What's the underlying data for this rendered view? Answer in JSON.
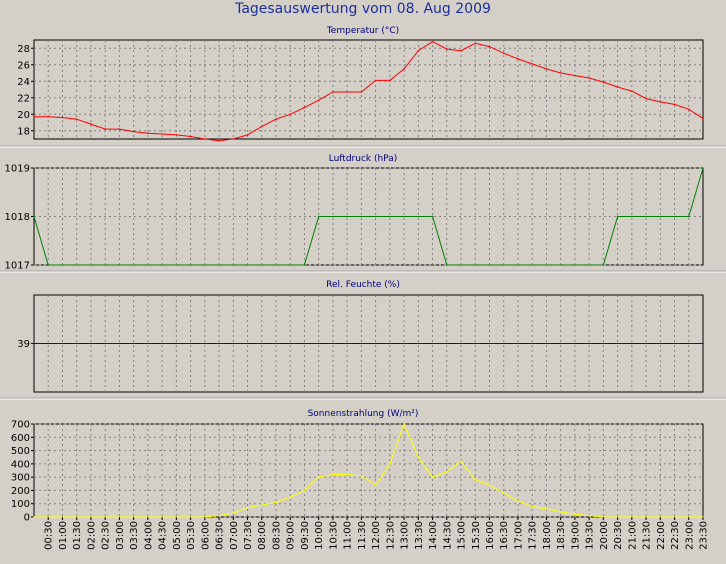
{
  "title": "Tagesauswertung vom 08. Aug 2009",
  "colors": {
    "background": "#d4d0c8",
    "plot_background": "#d4d0c8",
    "title": "#1a2fa0",
    "panel_title": "#000080",
    "grid": "#808080"
  },
  "x_axis_labels": [
    "00:30",
    "01:00",
    "01:30",
    "02:00",
    "02:30",
    "03:00",
    "03:30",
    "04:00",
    "04:30",
    "05:00",
    "05:30",
    "06:00",
    "06:30",
    "07:00",
    "07:30",
    "08:00",
    "08:30",
    "09:00",
    "09:30",
    "10:00",
    "10:30",
    "11:00",
    "11:30",
    "12:00",
    "12:30",
    "13:00",
    "13:30",
    "14:00",
    "14:30",
    "15:00",
    "15:30",
    "16:00",
    "16:30",
    "17:00",
    "17:30",
    "18:00",
    "18:30",
    "19:00",
    "19:30",
    "20:00",
    "20:30",
    "21:00",
    "21:30",
    "22:00",
    "22:30",
    "23:00",
    "23:30"
  ],
  "chart_data": [
    {
      "type": "line",
      "title": "Temperatur (°C)",
      "color": "#ff0000",
      "grid": true,
      "ylim": [
        17,
        29
      ],
      "yticks": [
        18,
        20,
        22,
        24,
        26,
        28
      ],
      "x": [
        "00:00",
        "00:30",
        "01:00",
        "01:30",
        "02:00",
        "02:30",
        "03:00",
        "03:30",
        "04:00",
        "04:30",
        "05:00",
        "05:30",
        "06:00",
        "06:30",
        "07:00",
        "07:30",
        "08:00",
        "08:30",
        "09:00",
        "09:30",
        "10:00",
        "10:30",
        "11:00",
        "11:30",
        "12:00",
        "12:30",
        "13:00",
        "13:30",
        "14:00",
        "14:30",
        "15:00",
        "15:30",
        "16:00",
        "16:30",
        "17:00",
        "17:30",
        "18:00",
        "18:30",
        "19:00",
        "19:30",
        "20:00",
        "20:30",
        "21:00",
        "21:30",
        "22:00",
        "22:30",
        "23:00",
        "23:30"
      ],
      "values": [
        19.7,
        19.7,
        19.6,
        19.4,
        18.8,
        18.2,
        18.2,
        17.9,
        17.7,
        17.6,
        17.5,
        17.3,
        17.0,
        16.8,
        17.0,
        17.5,
        18.5,
        19.4,
        20.0,
        20.8,
        21.7,
        22.7,
        22.7,
        22.7,
        24.1,
        24.1,
        25.5,
        27.7,
        28.8,
        27.9,
        27.7,
        28.6,
        28.2,
        27.4,
        26.7,
        26.1,
        25.5,
        25.0,
        24.7,
        24.4,
        23.9,
        23.3,
        22.8,
        21.9,
        21.5,
        21.2,
        20.6,
        19.5
      ]
    },
    {
      "type": "line",
      "title": "Luftdruck (hPa)",
      "color": "#008000",
      "grid": true,
      "ylim": [
        1017,
        1019
      ],
      "yticks": [
        1017,
        1018,
        1019
      ],
      "x": [
        "00:00",
        "00:30",
        "09:30",
        "10:00",
        "14:00",
        "14:30",
        "20:00",
        "20:30",
        "23:00",
        "23:30"
      ],
      "values": [
        1018,
        1017,
        1017,
        1018,
        1018,
        1017,
        1017,
        1018,
        1018,
        1019
      ]
    },
    {
      "type": "line",
      "title": "Rel. Feuchte (%)",
      "color": "#0000ff",
      "grid": true,
      "ylim": [
        38,
        40
      ],
      "yticks": [
        39
      ],
      "x": [
        "00:00",
        "23:30"
      ],
      "values": [
        39,
        39
      ]
    },
    {
      "type": "line",
      "title": "Sonnenstrahlung (W/m²)",
      "color": "#ffff00",
      "grid": true,
      "ylim": [
        0,
        700
      ],
      "yticks": [
        0,
        100,
        200,
        300,
        400,
        500,
        600,
        700
      ],
      "x": [
        "00:00",
        "06:00",
        "06:30",
        "07:00",
        "07:30",
        "08:00",
        "08:30",
        "09:00",
        "09:30",
        "10:00",
        "10:30",
        "11:00",
        "11:30",
        "12:00",
        "12:30",
        "13:00",
        "13:30",
        "14:00",
        "14:30",
        "15:00",
        "15:30",
        "16:00",
        "16:30",
        "17:00",
        "17:30",
        "18:00",
        "18:30",
        "19:00",
        "19:30",
        "20:00",
        "23:30"
      ],
      "values": [
        0,
        0,
        10,
        30,
        70,
        90,
        110,
        150,
        200,
        300,
        320,
        320,
        310,
        240,
        400,
        700,
        450,
        300,
        340,
        420,
        280,
        240,
        180,
        120,
        80,
        60,
        40,
        20,
        10,
        0,
        0
      ]
    }
  ]
}
